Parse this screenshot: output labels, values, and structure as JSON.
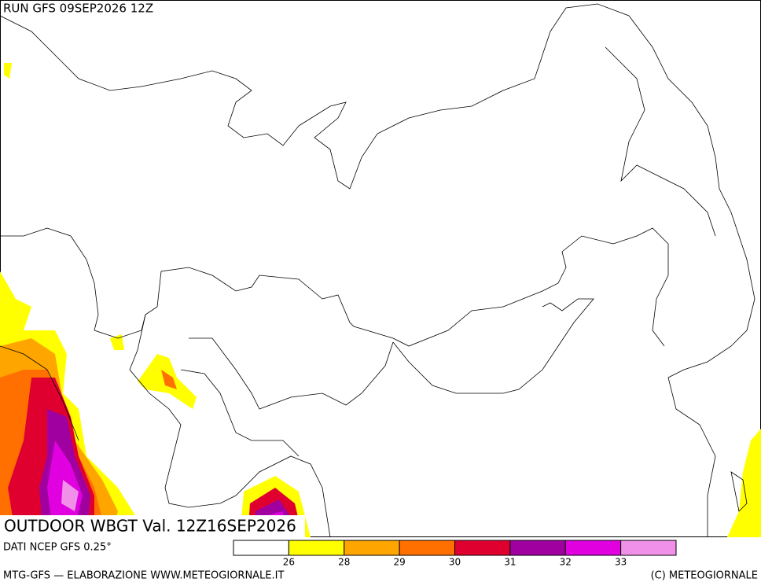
{
  "header": {
    "run": "RUN GFS 09SEP2026 12Z"
  },
  "map": {
    "title": "OUTDOOR WBGT Val. 12Z16SEP2026"
  },
  "legend": {
    "colors": [
      "#ffffff",
      "#ffff00",
      "#ffa500",
      "#ff7000",
      "#e00030",
      "#a000a0",
      "#e000e0",
      "#f090e8"
    ],
    "labels": [
      "26",
      "28",
      "29",
      "30",
      "31",
      "32",
      "33"
    ]
  },
  "footer": {
    "source": "DATI NCEP GFS 0.25°",
    "credit": "MTG-GFS — ELABORAZIONE WWW.METEOGIORNALE.IT",
    "copyright": "(C) METEOGIORNALE"
  }
}
